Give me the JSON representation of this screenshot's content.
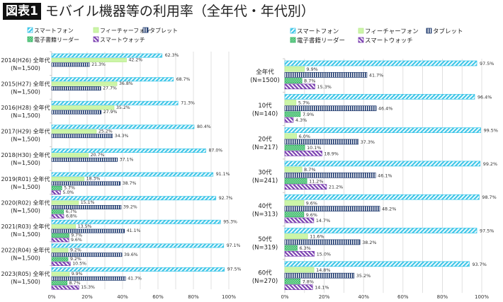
{
  "header": {
    "badge": "図表1",
    "title": "モバイル機器等の利用率（全年代・年代別）"
  },
  "colors": {
    "smartphone": "#3ec6e8",
    "featurephone": "#ccf5a8",
    "tablet": "#1f3a6e",
    "ereader": "#2eb35e",
    "smartwatch": "#7a3fb0",
    "grid": "#d9d9d9",
    "axis": "#bfbfbf",
    "text": "#333333"
  },
  "chart_data": [
    {
      "type": "bar",
      "orientation": "horizontal",
      "title": "全年代（年次推移）",
      "xlabel": "",
      "ylabel": "",
      "xlim": [
        0,
        100
      ],
      "x_ticks": [
        "0%",
        "20%",
        "40%",
        "60%",
        "80%",
        "100%"
      ],
      "grid": true,
      "legend_position": "top",
      "legend": [
        "スマートフォン",
        "フィーチャーフォン",
        "タブレット",
        "電子書籍リーダー",
        "スマートウォッチ"
      ],
      "categories": [
        {
          "line1": "2014(H26) 全年代",
          "line2": "(N=1,500)"
        },
        {
          "line1": "2015(H27) 全年代",
          "line2": "(N=1,500)"
        },
        {
          "line1": "2016(H28) 全年代",
          "line2": "(N=1,500)"
        },
        {
          "line1": "2017(H29) 全年代",
          "line2": "(N=1,500)"
        },
        {
          "line1": "2018(H30) 全年代",
          "line2": "(N=1,500)"
        },
        {
          "line1": "2019(R01) 全年代",
          "line2": "(N=1,500)"
        },
        {
          "line1": "2020(R02) 全年代",
          "line2": "(N=1,500)"
        },
        {
          "line1": "2021(R03) 全年代",
          "line2": "(N=1,500)"
        },
        {
          "line1": "2022(R04) 全年代",
          "line2": "(N=1,500)"
        },
        {
          "line1": "2023(R05) 全年代",
          "line2": "(N=1,500)"
        }
      ],
      "series": [
        {
          "name": "スマートフォン",
          "key": "smartphone",
          "values": [
            62.3,
            68.7,
            71.3,
            80.4,
            87.0,
            91.1,
            92.7,
            95.3,
            97.1,
            97.5
          ]
        },
        {
          "name": "フィーチャーフォン",
          "key": "featurephone",
          "values": [
            42.2,
            36.8,
            35.2,
            25.2,
            20.7,
            18.3,
            15.1,
            13.5,
            9.2,
            9.9
          ]
        },
        {
          "name": "タブレット",
          "key": "tablet",
          "values": [
            21.3,
            27.7,
            27.9,
            34.3,
            37.1,
            38.7,
            39.2,
            41.1,
            39.6,
            41.7
          ]
        },
        {
          "name": "電子書籍リーダー",
          "key": "ereader",
          "values": [
            null,
            null,
            null,
            null,
            null,
            5.7,
            6.7,
            9.7,
            9.2,
            8.7
          ]
        },
        {
          "name": "スマートウォッチ",
          "key": "smartwatch",
          "values": [
            null,
            null,
            null,
            null,
            null,
            5.0,
            6.8,
            9.6,
            10.5,
            15.3
          ]
        }
      ]
    },
    {
      "type": "bar",
      "orientation": "horizontal",
      "title": "年代別（2023）",
      "xlabel": "",
      "ylabel": "",
      "xlim": [
        0,
        100
      ],
      "x_ticks": [
        "0%",
        "20%",
        "40%",
        "60%",
        "80%",
        "100%"
      ],
      "grid": true,
      "legend_position": "top",
      "legend": [
        "スマートフォン",
        "フィーチャーフォン",
        "タブレット",
        "電子書籍リーダー",
        "スマートウォッチ"
      ],
      "categories": [
        {
          "line1": "全年代",
          "line2": "(N=1500)"
        },
        {
          "line1": "10代",
          "line2": "(N=140)"
        },
        {
          "line1": "20代",
          "line2": "(N=217)"
        },
        {
          "line1": "30代",
          "line2": "(N=241)"
        },
        {
          "line1": "40代",
          "line2": "(N=313)"
        },
        {
          "line1": "50代",
          "line2": "(N=319)"
        },
        {
          "line1": "60代",
          "line2": "(N=270)"
        }
      ],
      "series": [
        {
          "name": "スマートフォン",
          "key": "smartphone",
          "values": [
            97.5,
            96.4,
            99.5,
            99.2,
            98.7,
            97.5,
            93.7
          ]
        },
        {
          "name": "フィーチャーフォン",
          "key": "featurephone",
          "values": [
            9.9,
            5.7,
            6.0,
            8.7,
            9.6,
            11.6,
            14.8
          ]
        },
        {
          "name": "タブレット",
          "key": "tablet",
          "values": [
            41.7,
            46.4,
            37.3,
            46.1,
            48.2,
            38.2,
            35.2
          ]
        },
        {
          "name": "電子書籍リーダー",
          "key": "ereader",
          "values": [
            8.7,
            7.9,
            10.1,
            11.2,
            9.6,
            6.3,
            7.8
          ]
        },
        {
          "name": "スマートウォッチ",
          "key": "smartwatch",
          "values": [
            15.3,
            4.3,
            18.9,
            21.2,
            14.7,
            15.0,
            14.1
          ]
        }
      ]
    }
  ]
}
